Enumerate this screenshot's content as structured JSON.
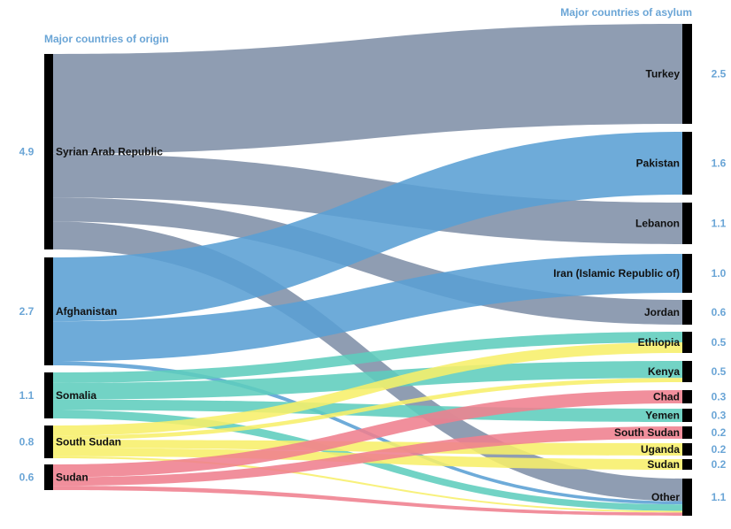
{
  "headers": {
    "origin": "Major countries of origin",
    "asylum": "Major countries of asylum"
  },
  "colors": {
    "syria": "#7f90a7",
    "afghanistan": "#5a9fd4",
    "somalia": "#5ecdbd",
    "south_sudan": "#f7ef6a",
    "sudan": "#ef7f8e",
    "node": "#000000",
    "value_label": "#6aa5d6"
  },
  "chart_data": {
    "type": "sankey",
    "origins": [
      {
        "id": "syria",
        "label": "Syrian Arab Republic",
        "value": "4.9"
      },
      {
        "id": "afghanistan",
        "label": "Afghanistan",
        "value": "2.7"
      },
      {
        "id": "somalia",
        "label": "Somalia",
        "value": "1.1"
      },
      {
        "id": "south_sudan",
        "label": "South Sudan",
        "value": "0.8"
      },
      {
        "id": "sudan",
        "label": "Sudan",
        "value": "0.6"
      }
    ],
    "destinations": [
      {
        "id": "turkey",
        "label": "Turkey",
        "value": "2.5"
      },
      {
        "id": "pakistan",
        "label": "Pakistan",
        "value": "1.6"
      },
      {
        "id": "lebanon",
        "label": "Lebanon",
        "value": "1.1"
      },
      {
        "id": "iran",
        "label": "Iran (Islamic Republic of)",
        "value": "1.0"
      },
      {
        "id": "jordan",
        "label": "Jordan",
        "value": "0.6"
      },
      {
        "id": "ethiopia",
        "label": "Ethiopia",
        "value": "0.5"
      },
      {
        "id": "kenya",
        "label": "Kenya",
        "value": "0.5"
      },
      {
        "id": "chad",
        "label": "Chad",
        "value": "0.3"
      },
      {
        "id": "yemen",
        "label": "Yemen",
        "value": "0.3"
      },
      {
        "id": "south_sudan_d",
        "label": "South Sudan",
        "value": "0.2"
      },
      {
        "id": "uganda",
        "label": "Uganda",
        "value": "0.2"
      },
      {
        "id": "sudan_d",
        "label": "Sudan",
        "value": "0.2"
      },
      {
        "id": "other",
        "label": "Other",
        "value": "1.1"
      }
    ],
    "flows": [
      {
        "from": "syria",
        "to": "turkey",
        "value": 2.5
      },
      {
        "from": "syria",
        "to": "lebanon",
        "value": 1.1
      },
      {
        "from": "syria",
        "to": "jordan",
        "value": 0.6
      },
      {
        "from": "syria",
        "to": "other",
        "value": 0.7
      },
      {
        "from": "afghanistan",
        "to": "pakistan",
        "value": 1.6
      },
      {
        "from": "afghanistan",
        "to": "iran",
        "value": 1.0
      },
      {
        "from": "afghanistan",
        "to": "other",
        "value": 0.1
      },
      {
        "from": "somalia",
        "to": "ethiopia",
        "value": 0.25
      },
      {
        "from": "somalia",
        "to": "kenya",
        "value": 0.4
      },
      {
        "from": "somalia",
        "to": "yemen",
        "value": 0.25
      },
      {
        "from": "somalia",
        "to": "other",
        "value": 0.2
      },
      {
        "from": "south_sudan",
        "to": "ethiopia",
        "value": 0.25
      },
      {
        "from": "south_sudan",
        "to": "kenya",
        "value": 0.1
      },
      {
        "from": "south_sudan",
        "to": "uganda",
        "value": 0.2
      },
      {
        "from": "south_sudan",
        "to": "sudan_d",
        "value": 0.2
      },
      {
        "from": "south_sudan",
        "to": "other",
        "value": 0.05
      },
      {
        "from": "sudan",
        "to": "chad",
        "value": 0.3
      },
      {
        "from": "sudan",
        "to": "south_sudan_d",
        "value": 0.2
      },
      {
        "from": "sudan",
        "to": "other",
        "value": 0.1
      }
    ]
  }
}
